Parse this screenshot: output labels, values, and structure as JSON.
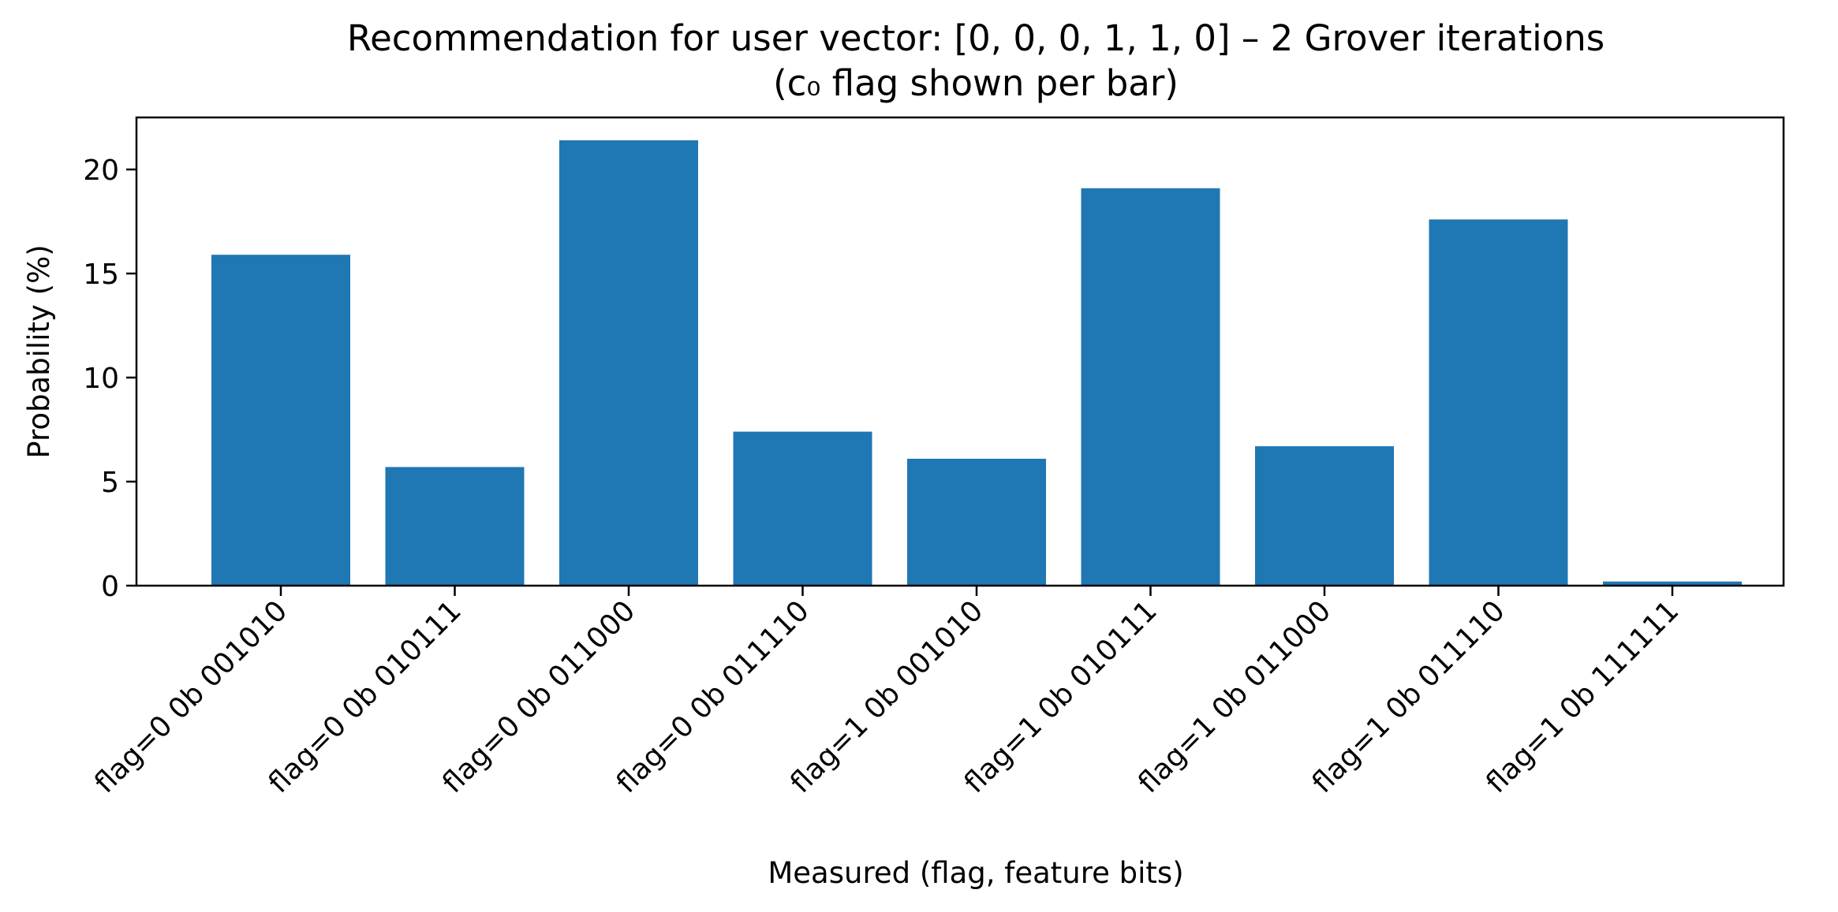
{
  "chart_data": {
    "type": "bar",
    "title": "Recommendation for user vector: [0, 0, 0, 1, 1, 0]  –  2 Grover iterations",
    "subtitle": "(c₀ flag shown per bar)",
    "xlabel": "Measured (flag, feature bits)",
    "ylabel": "Probability (%)",
    "categories": [
      "flag=0 0b 001010",
      "flag=0 0b 010111",
      "flag=0 0b 011000",
      "flag=0 0b 011110",
      "flag=1 0b 001010",
      "flag=1 0b 010111",
      "flag=1 0b 011000",
      "flag=1 0b 011110",
      "flag=1 0b 111111"
    ],
    "values": [
      15.9,
      5.7,
      21.4,
      7.4,
      6.1,
      19.1,
      6.7,
      17.6,
      0.2
    ],
    "ylim": [
      0,
      22.5
    ],
    "yticks": [
      0,
      5,
      10,
      15,
      20
    ],
    "bar_color": "#1f77b4",
    "grid": false,
    "legend": "none"
  }
}
